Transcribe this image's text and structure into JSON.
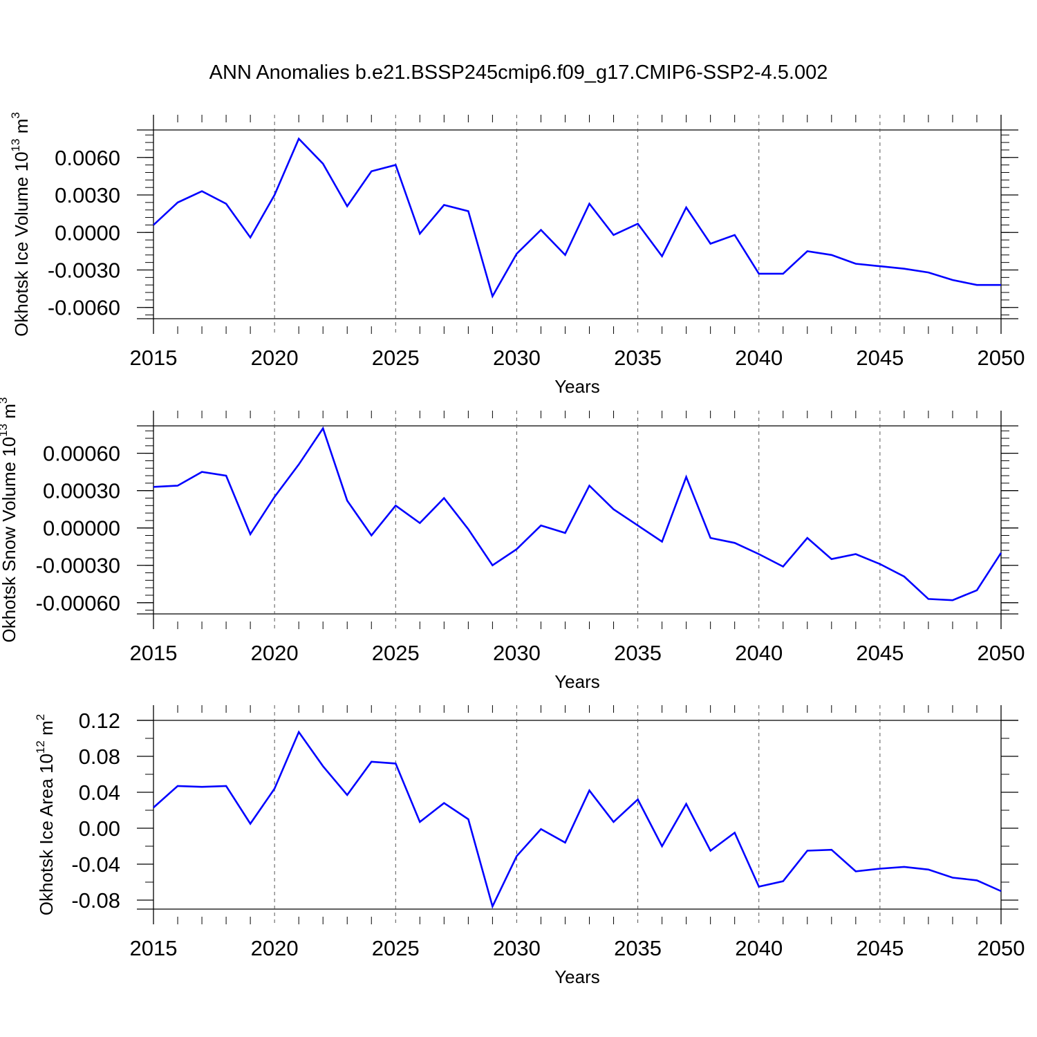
{
  "title": "ANN Anomalies b.e21.BSSP245cmip6.f09_g17.CMIP6-SSP2-4.5.002",
  "line_color": "#0000ff",
  "chart_data": [
    {
      "type": "line",
      "ylabel_main": "Okhotsk Ice Volume 10",
      "ylabel_exp": "13",
      "ylabel_unit": " m",
      "ylabel_unit_exp": "3",
      "xlabel": "Years",
      "xlim": [
        2015,
        2050
      ],
      "ylim": [
        -0.0069,
        0.0082
      ],
      "xticks": [
        "2015",
        "2020",
        "2025",
        "2030",
        "2035",
        "2040",
        "2045",
        "2050"
      ],
      "yticks": [
        {
          "value": 0.006,
          "label": "0.0060"
        },
        {
          "value": 0.003,
          "label": "0.0030"
        },
        {
          "value": 0.0,
          "label": "0.0000"
        },
        {
          "value": -0.003,
          "label": "-0.0030"
        },
        {
          "value": -0.006,
          "label": "-0.0060"
        }
      ],
      "minor_step": 0.0006,
      "x": [
        2015,
        2016,
        2017,
        2018,
        2019,
        2020,
        2021,
        2022,
        2023,
        2024,
        2025,
        2026,
        2027,
        2028,
        2029,
        2030,
        2031,
        2032,
        2033,
        2034,
        2035,
        2036,
        2037,
        2038,
        2039,
        2040,
        2041,
        2042,
        2043,
        2044,
        2045,
        2046,
        2047,
        2048,
        2049,
        2050
      ],
      "values": [
        0.0006,
        0.0024,
        0.0033,
        0.0023,
        -0.0004,
        0.003,
        0.0075,
        0.0055,
        0.0021,
        0.0049,
        0.0054,
        -0.0001,
        0.0022,
        0.0017,
        -0.0051,
        -0.0017,
        0.0002,
        -0.0018,
        0.0023,
        -0.0002,
        0.0007,
        -0.0019,
        0.002,
        -0.0009,
        -0.0002,
        -0.0033,
        -0.0033,
        -0.0015,
        -0.0018,
        -0.0025,
        -0.0027,
        -0.0029,
        -0.0032,
        -0.0038,
        -0.0042,
        -0.0042
      ]
    },
    {
      "type": "line",
      "ylabel_main": "Okhotsk Snow Volume 10",
      "ylabel_exp": "13",
      "ylabel_unit": " m",
      "ylabel_unit_exp": "3",
      "xlabel": "Years",
      "xlim": [
        2015,
        2050
      ],
      "ylim": [
        -0.00069,
        0.00082
      ],
      "xticks": [
        "2015",
        "2020",
        "2025",
        "2030",
        "2035",
        "2040",
        "2045",
        "2050"
      ],
      "yticks": [
        {
          "value": 0.0006,
          "label": "0.00060"
        },
        {
          "value": 0.0003,
          "label": "0.00030"
        },
        {
          "value": 0.0,
          "label": "0.00000"
        },
        {
          "value": -0.0003,
          "label": "-0.00030"
        },
        {
          "value": -0.0006,
          "label": "-0.00060"
        }
      ],
      "minor_step": 6e-05,
      "x": [
        2015,
        2016,
        2017,
        2018,
        2019,
        2020,
        2021,
        2022,
        2023,
        2024,
        2025,
        2026,
        2027,
        2028,
        2029,
        2030,
        2031,
        2032,
        2033,
        2034,
        2035,
        2036,
        2037,
        2038,
        2039,
        2040,
        2041,
        2042,
        2043,
        2044,
        2045,
        2046,
        2047,
        2048,
        2049,
        2050
      ],
      "values": [
        0.00033,
        0.00034,
        0.00045,
        0.00042,
        -5e-05,
        0.00025,
        0.00051,
        0.0008,
        0.00022,
        -6e-05,
        0.00018,
        4e-05,
        0.00024,
        -1e-05,
        -0.0003,
        -0.00017,
        2e-05,
        -4e-05,
        0.00034,
        0.00015,
        2e-05,
        -0.00011,
        0.00041,
        -8e-05,
        -0.00012,
        -0.00021,
        -0.00031,
        -8e-05,
        -0.00025,
        -0.00021,
        -0.00029,
        -0.00039,
        -0.00057,
        -0.00058,
        -0.0005,
        -0.0002
      ]
    },
    {
      "type": "line",
      "ylabel_main": "Okhotsk Ice Area 10",
      "ylabel_exp": "12",
      "ylabel_unit": " m",
      "ylabel_unit_exp": "2",
      "xlabel": "Years",
      "xlim": [
        2015,
        2050
      ],
      "ylim": [
        -0.09,
        0.12
      ],
      "xticks": [
        "2015",
        "2020",
        "2025",
        "2030",
        "2035",
        "2040",
        "2045",
        "2050"
      ],
      "yticks": [
        {
          "value": 0.12,
          "label": "0.12"
        },
        {
          "value": 0.08,
          "label": "0.08"
        },
        {
          "value": 0.04,
          "label": "0.04"
        },
        {
          "value": 0.0,
          "label": "0.00"
        },
        {
          "value": -0.04,
          "label": "-0.04"
        },
        {
          "value": -0.08,
          "label": "-0.08"
        }
      ],
      "minor_step": 0.02,
      "x": [
        2015,
        2016,
        2017,
        2018,
        2019,
        2020,
        2021,
        2022,
        2023,
        2024,
        2025,
        2026,
        2027,
        2028,
        2029,
        2030,
        2031,
        2032,
        2033,
        2034,
        2035,
        2036,
        2037,
        2038,
        2039,
        2040,
        2041,
        2042,
        2043,
        2044,
        2045,
        2046,
        2047,
        2048,
        2049,
        2050
      ],
      "values": [
        0.023,
        0.047,
        0.046,
        0.047,
        0.005,
        0.044,
        0.107,
        0.069,
        0.037,
        0.074,
        0.072,
        0.007,
        0.028,
        0.01,
        -0.087,
        -0.031,
        -0.001,
        -0.016,
        0.042,
        0.007,
        0.032,
        -0.02,
        0.027,
        -0.025,
        -0.005,
        -0.065,
        -0.059,
        -0.025,
        -0.024,
        -0.048,
        -0.045,
        -0.043,
        -0.046,
        -0.055,
        -0.058,
        -0.07
      ]
    }
  ]
}
